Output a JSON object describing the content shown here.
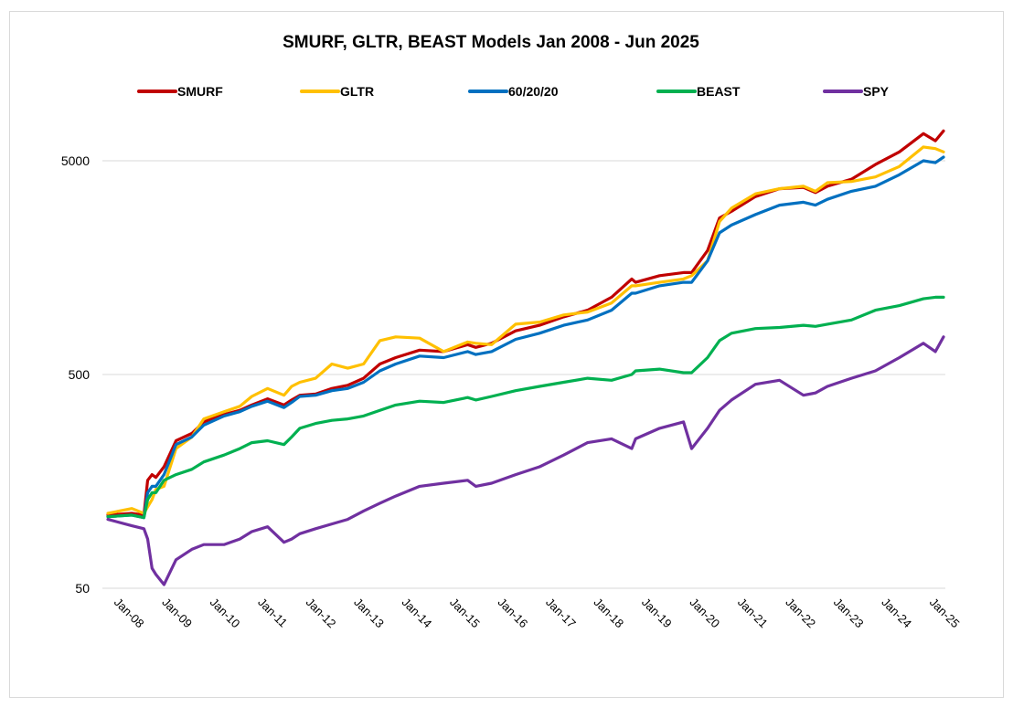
{
  "chart_data": {
    "type": "line",
    "title": "SMURF, GLTR, BEAST  Models Jan 2008 - Jun 2025",
    "xlabel": "",
    "ylabel": "",
    "y_scale": "log",
    "ylim": [
      50,
      8000
    ],
    "y_ticks": [
      50,
      500,
      5000
    ],
    "y_tick_labels": [
      "50",
      "500",
      "5000"
    ],
    "x_tick_labels": [
      "Jan-08",
      "Jan-09",
      "Jan-10",
      "Jan-11",
      "Jan-12",
      "Jan-13",
      "Jan-14",
      "Jan-15",
      "Jan-16",
      "Jan-17",
      "Jan-18",
      "Jan-19",
      "Jan-20",
      "Jan-21",
      "Jan-22",
      "Jan-23",
      "Jan-24",
      "Jan-25"
    ],
    "x": [
      2008.0,
      2008.5,
      2008.75,
      2008.83,
      2008.92,
      2009.0,
      2009.17,
      2009.42,
      2009.75,
      2010.0,
      2010.42,
      2010.75,
      2011.0,
      2011.33,
      2011.67,
      2011.83,
      2012.0,
      2012.33,
      2012.67,
      2013.0,
      2013.33,
      2013.67,
      2014.0,
      2014.5,
      2015.0,
      2015.5,
      2015.67,
      2016.0,
      2016.5,
      2017.0,
      2017.5,
      2018.0,
      2018.5,
      2018.92,
      2019.0,
      2019.5,
      2020.0,
      2020.17,
      2020.5,
      2020.75,
      2021.0,
      2021.5,
      2022.0,
      2022.5,
      2022.75,
      2023.0,
      2023.5,
      2024.0,
      2024.5,
      2025.0,
      2025.25,
      2025.42
    ],
    "grid": "horizontal",
    "legend_position": "top",
    "series": [
      {
        "name": "SMURF",
        "color": "#c00000",
        "values": [
          110,
          112,
          110,
          160,
          170,
          165,
          185,
          245,
          265,
          300,
          325,
          340,
          360,
          385,
          360,
          380,
          400,
          405,
          430,
          445,
          480,
          560,
          600,
          650,
          640,
          690,
          670,
          700,
          800,
          850,
          930,
          1000,
          1150,
          1400,
          1350,
          1450,
          1500,
          1500,
          1900,
          2700,
          2900,
          3400,
          3700,
          3750,
          3550,
          3800,
          4100,
          4800,
          5500,
          6700,
          6200,
          6900
        ]
      },
      {
        "name": "GLTR",
        "color": "#ffc000",
        "values": [
          112,
          118,
          112,
          120,
          130,
          145,
          150,
          225,
          255,
          310,
          335,
          355,
          395,
          430,
          400,
          440,
          460,
          480,
          560,
          535,
          560,
          720,
          750,
          740,
          640,
          710,
          700,
          690,
          860,
          880,
          950,
          980,
          1080,
          1300,
          1300,
          1350,
          1400,
          1450,
          1700,
          2600,
          3000,
          3500,
          3700,
          3800,
          3600,
          3950,
          4000,
          4200,
          4700,
          5800,
          5700,
          5500
        ]
      },
      {
        "name": "60/20/20",
        "color": "#0070c0",
        "values": [
          108,
          110,
          107,
          140,
          150,
          150,
          170,
          235,
          255,
          290,
          320,
          335,
          355,
          375,
          350,
          370,
          395,
          400,
          420,
          430,
          460,
          520,
          560,
          610,
          600,
          640,
          620,
          640,
          730,
          780,
          850,
          900,
          1000,
          1200,
          1200,
          1300,
          1350,
          1350,
          1700,
          2300,
          2500,
          2800,
          3100,
          3200,
          3100,
          3300,
          3600,
          3800,
          4300,
          5000,
          4900,
          5200
        ]
      },
      {
        "name": "BEAST",
        "color": "#00b050",
        "values": [
          108,
          110,
          107,
          130,
          140,
          140,
          160,
          170,
          180,
          195,
          210,
          225,
          240,
          245,
          235,
          255,
          280,
          295,
          305,
          310,
          320,
          340,
          360,
          375,
          370,
          390,
          380,
          395,
          420,
          440,
          460,
          480,
          470,
          500,
          520,
          530,
          510,
          510,
          600,
          720,
          780,
          820,
          830,
          850,
          840,
          860,
          900,
          1000,
          1050,
          1130,
          1150,
          1150
        ]
      },
      {
        "name": "SPY",
        "color": "#7030a0",
        "values": [
          105,
          98,
          95,
          85,
          62,
          58,
          52,
          68,
          76,
          80,
          80,
          85,
          92,
          97,
          82,
          85,
          90,
          95,
          100,
          105,
          115,
          125,
          135,
          150,
          155,
          160,
          150,
          155,
          170,
          185,
          210,
          240,
          250,
          225,
          250,
          280,
          300,
          225,
          280,
          340,
          380,
          450,
          470,
          400,
          410,
          440,
          480,
          520,
          600,
          700,
          640,
          750
        ]
      }
    ]
  }
}
